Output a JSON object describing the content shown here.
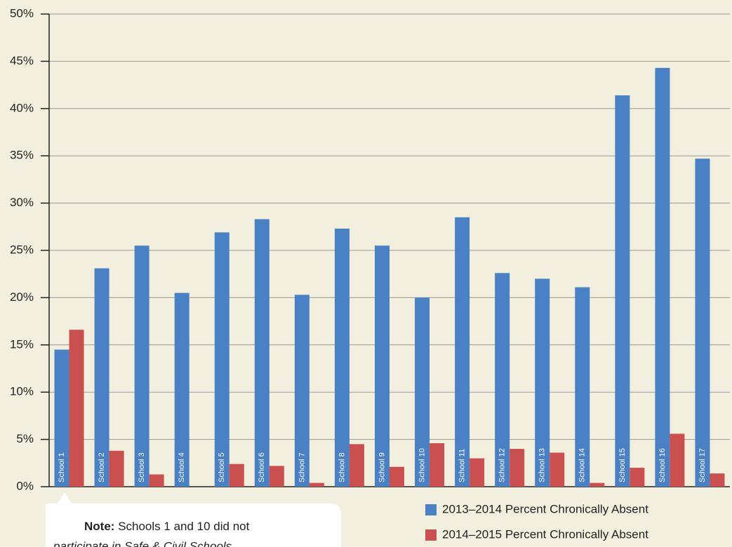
{
  "chart_data": {
    "type": "bar",
    "categories": [
      "School 1",
      "School 2",
      "School 3",
      "School 4",
      "School 5",
      "School 6",
      "School 7",
      "School 8",
      "School 9",
      "School 10",
      "School 11",
      "School 12",
      "School 13",
      "School 14",
      "School 15",
      "School 16",
      "School 17"
    ],
    "series": [
      {
        "name": "2013–2014 Percent Chronically Absent",
        "color": "#4a80c4",
        "values": [
          14.5,
          23.1,
          25.5,
          20.5,
          26.9,
          28.3,
          20.3,
          27.3,
          25.5,
          20.0,
          28.5,
          22.6,
          22.0,
          21.1,
          41.4,
          44.3,
          34.7
        ]
      },
      {
        "name": "2014–2015 Percent Chronically Absent",
        "color": "#c9504f",
        "values": [
          16.6,
          3.8,
          1.3,
          null,
          2.4,
          2.2,
          0.4,
          4.5,
          2.1,
          4.6,
          3.0,
          4.0,
          3.6,
          0.4,
          2.0,
          5.6,
          1.4
        ]
      }
    ],
    "ylim": [
      0,
      50
    ],
    "yticks": [
      {
        "value": 0,
        "label": "0%"
      },
      {
        "value": 5,
        "label": "5%"
      },
      {
        "value": 10,
        "label": "10%"
      },
      {
        "value": 15,
        "label": "15%"
      },
      {
        "value": 20,
        "label": "20%"
      },
      {
        "value": 25,
        "label": "25%"
      },
      {
        "value": 30,
        "label": "30%"
      },
      {
        "value": 35,
        "label": "35%"
      },
      {
        "value": 40,
        "label": "40%"
      },
      {
        "value": 45,
        "label": "45%"
      },
      {
        "value": 50,
        "label": "50%"
      }
    ],
    "grid": true,
    "legend": "bottom-right",
    "note": {
      "label": "Note:",
      "lines": [
        "Schools 1 and 10 did not",
        "participate in Safe & Civil Schools"
      ]
    }
  }
}
